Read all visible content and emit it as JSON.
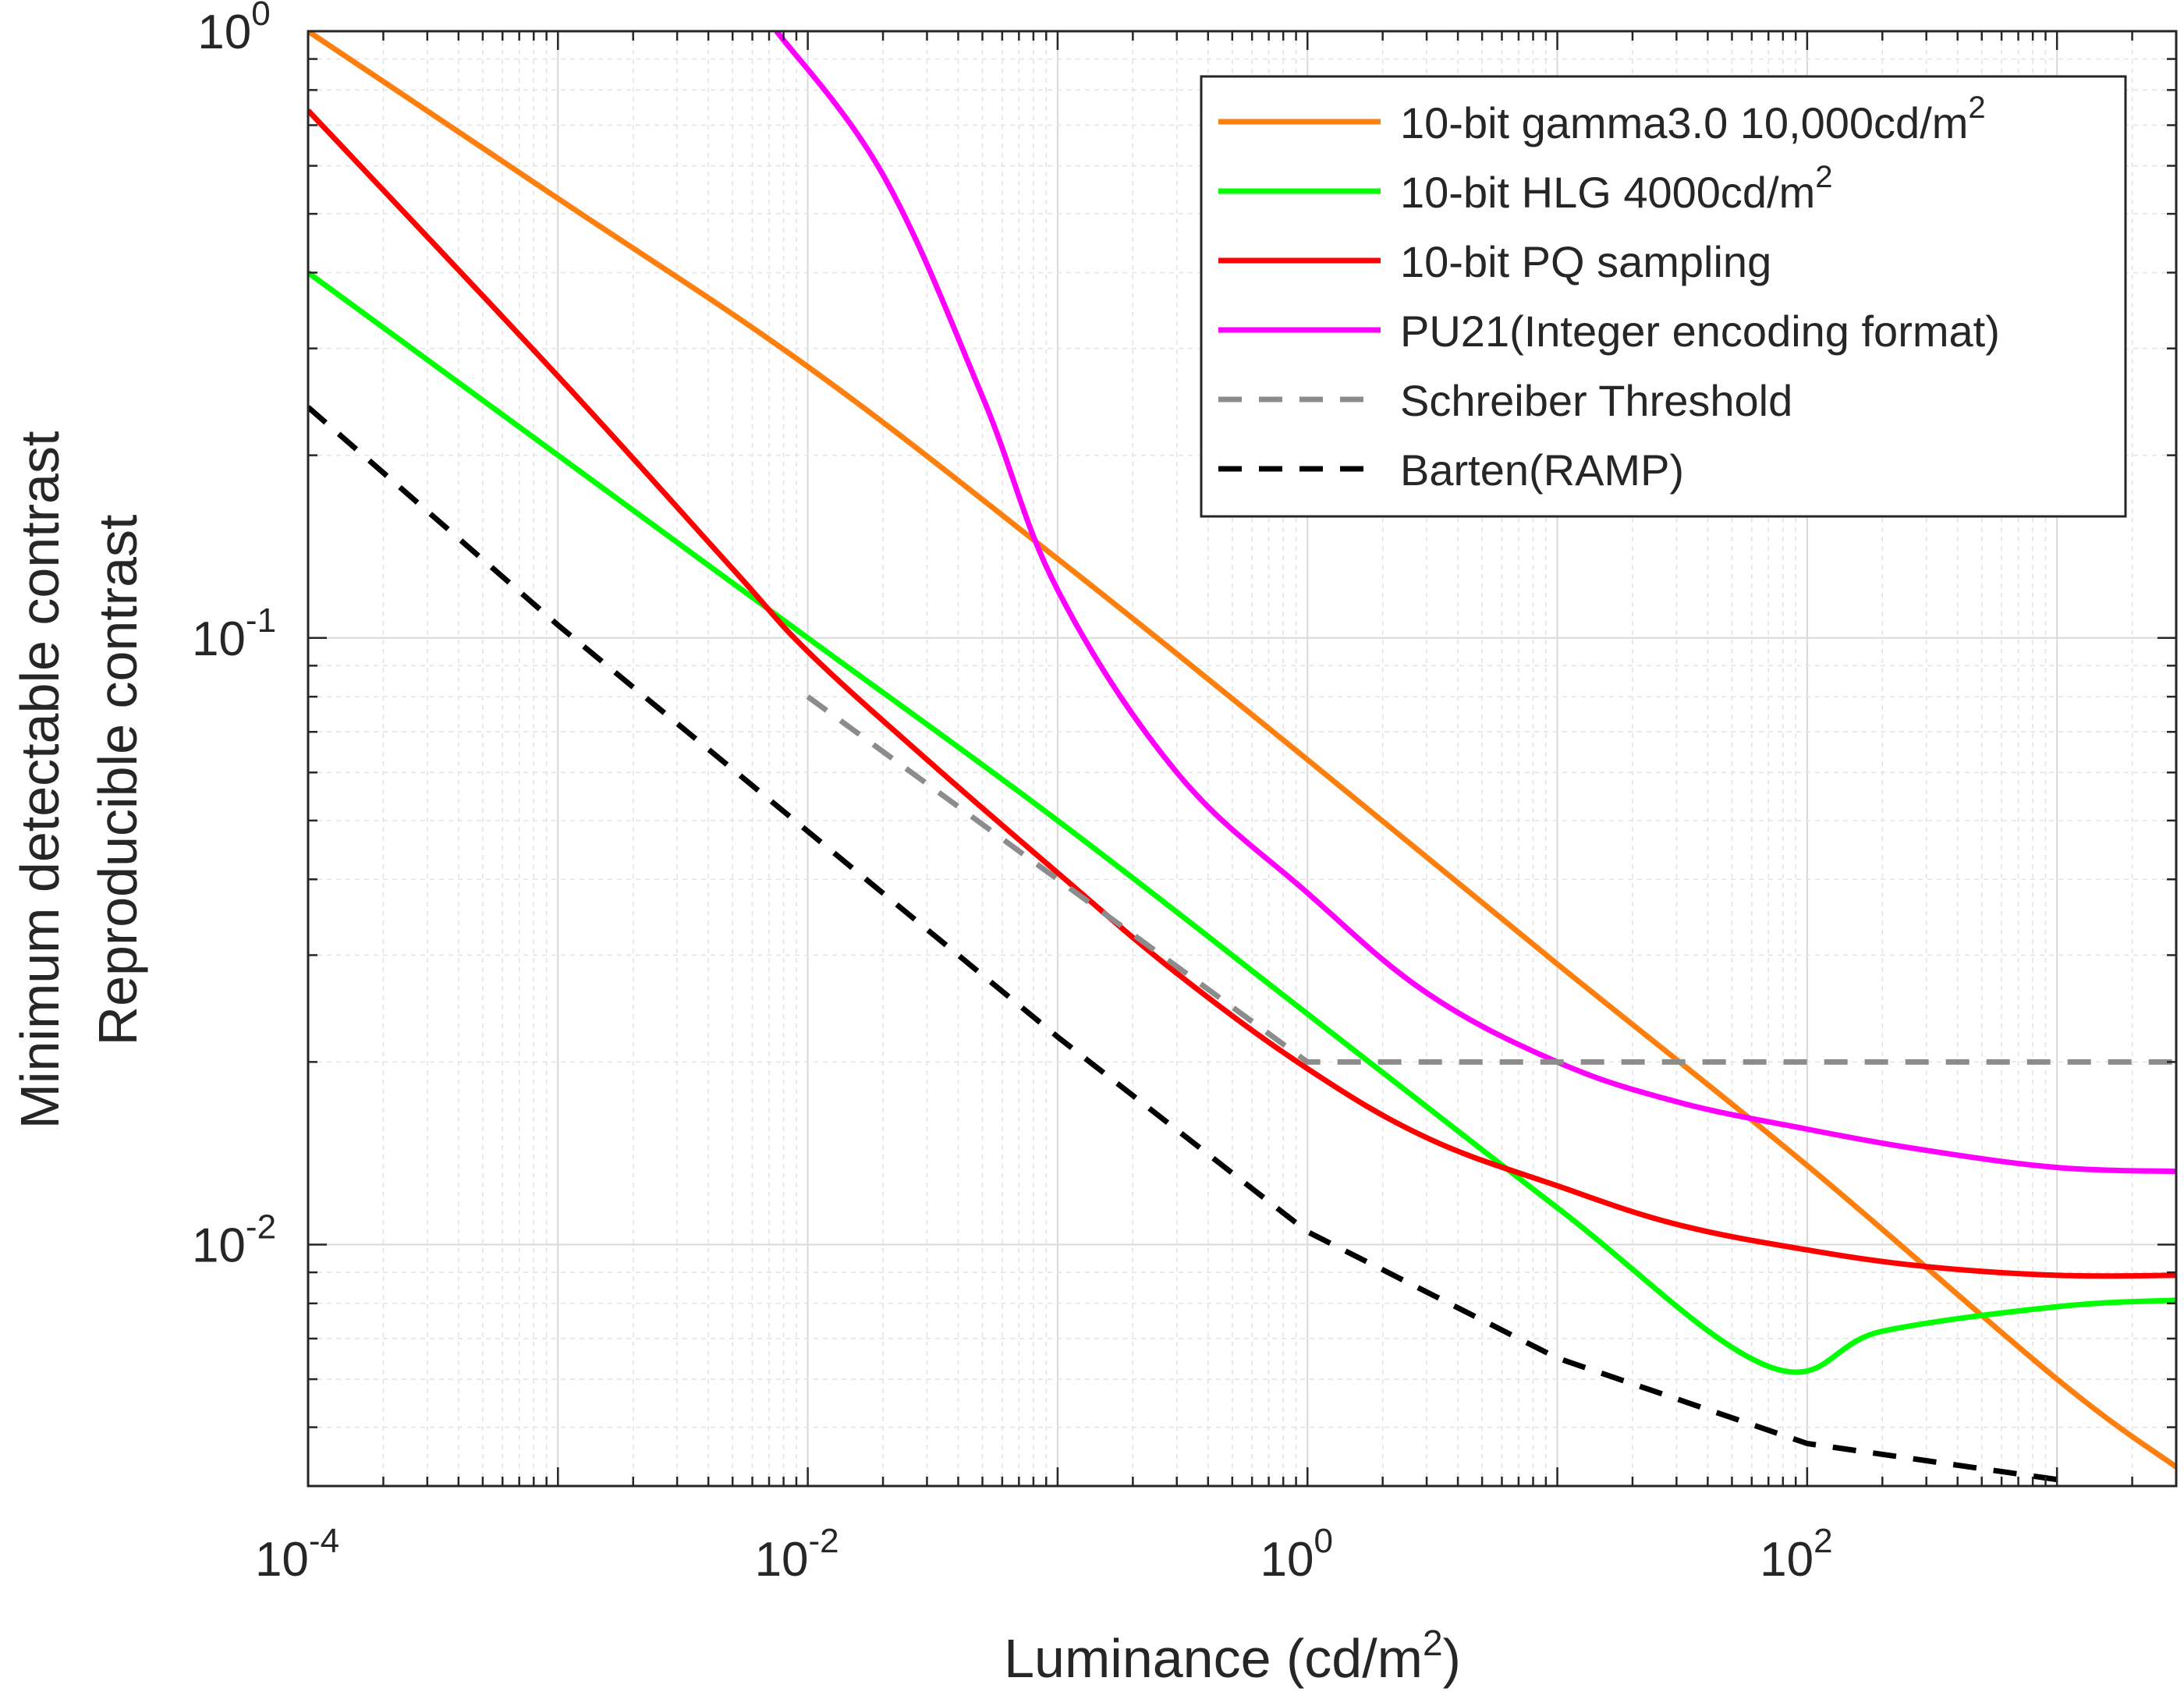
{
  "chart_data": {
    "type": "line",
    "xlabel": "Luminance (cd/m",
    "xlabel_sup": "2",
    "xlabel_tail": ")",
    "ylabel_line1": "Minimum detectable contrast",
    "ylabel_line2": "Reproducible contrast",
    "xscale": "log",
    "yscale": "log",
    "xlim": [
      0.0001,
      3000
    ],
    "ylim": [
      0.004,
      1
    ],
    "grid": true,
    "minor_grid": true,
    "legend_position": "top-right",
    "x_ticks": [
      {
        "value": 0.0001,
        "base": "10",
        "exp": "-4"
      },
      {
        "value": 0.01,
        "base": "10",
        "exp": "-2"
      },
      {
        "value": 1,
        "base": "10",
        "exp": "0"
      },
      {
        "value": 100,
        "base": "10",
        "exp": "2"
      }
    ],
    "y_ticks": [
      {
        "value": 1,
        "base": "10",
        "exp": "0"
      },
      {
        "value": 0.1,
        "base": "10",
        "exp": "-1"
      },
      {
        "value": 0.01,
        "base": "10",
        "exp": "-2"
      }
    ],
    "series": [
      {
        "name": "10-bit gamma3.0 10,000cd/m",
        "name_sup": "2",
        "color": "#ff7f0e",
        "dash": "solid",
        "points": [
          [
            0.0001,
            1.0
          ],
          [
            0.001,
            0.53
          ],
          [
            0.01,
            0.28
          ],
          [
            0.1,
            0.135
          ],
          [
            1,
            0.063
          ],
          [
            10,
            0.029
          ],
          [
            100,
            0.0135
          ],
          [
            1000,
            0.006
          ],
          [
            3000,
            0.0043
          ]
        ]
      },
      {
        "name": "10-bit HLG 4000cd/m",
        "name_sup": "2",
        "color": "#00ff00",
        "dash": "solid",
        "points": [
          [
            0.0001,
            0.4
          ],
          [
            0.001,
            0.2
          ],
          [
            0.01,
            0.1
          ],
          [
            0.1,
            0.05
          ],
          [
            1,
            0.024
          ],
          [
            10,
            0.0115
          ],
          [
            70,
            0.0063
          ],
          [
            200,
            0.0072
          ],
          [
            1000,
            0.0079
          ],
          [
            3000,
            0.0081
          ]
        ]
      },
      {
        "name": "10-bit PQ sampling",
        "name_sup": "",
        "color": "#ff0000",
        "dash": "solid",
        "points": [
          [
            0.0001,
            0.74
          ],
          [
            0.001,
            0.27
          ],
          [
            0.005,
            0.13
          ],
          [
            0.01,
            0.095
          ],
          [
            0.03,
            0.063
          ],
          [
            0.1,
            0.041
          ],
          [
            0.3,
            0.028
          ],
          [
            1,
            0.0195
          ],
          [
            3,
            0.015
          ],
          [
            10,
            0.0125
          ],
          [
            30,
            0.0108
          ],
          [
            100,
            0.0098
          ],
          [
            300,
            0.0092
          ],
          [
            1000,
            0.0089
          ],
          [
            3000,
            0.0089
          ]
        ]
      },
      {
        "name": "PU21(Integer encoding format)",
        "name_sup": "",
        "color": "#ff00ff",
        "dash": "solid",
        "points": [
          [
            0.0075,
            1.0
          ],
          [
            0.02,
            0.58
          ],
          [
            0.05,
            0.25
          ],
          [
            0.1,
            0.12
          ],
          [
            0.3,
            0.06
          ],
          [
            1,
            0.038
          ],
          [
            3,
            0.026
          ],
          [
            10,
            0.02
          ],
          [
            30,
            0.0172
          ],
          [
            100,
            0.0155
          ],
          [
            300,
            0.0143
          ],
          [
            1000,
            0.0134
          ],
          [
            3000,
            0.0132
          ]
        ]
      },
      {
        "name": "Schreiber Threshold",
        "name_sup": "",
        "color": "#8c8c8c",
        "dash": "dashed",
        "points": [
          [
            0.01,
            0.08
          ],
          [
            0.1,
            0.04
          ],
          [
            1,
            0.02
          ],
          [
            3000,
            0.02
          ]
        ]
      },
      {
        "name": "Barten(RAMP)",
        "name_sup": "",
        "color": "#000000",
        "dash": "dashed",
        "points": [
          [
            0.0001,
            0.24
          ],
          [
            0.001,
            0.105
          ],
          [
            0.01,
            0.048
          ],
          [
            0.1,
            0.022
          ],
          [
            1,
            0.0105
          ],
          [
            10,
            0.0065
          ],
          [
            100,
            0.0047
          ],
          [
            1000,
            0.0041
          ]
        ]
      }
    ]
  }
}
